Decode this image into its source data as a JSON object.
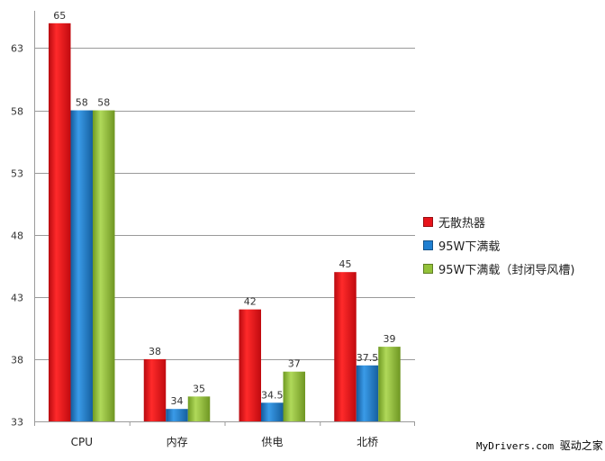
{
  "chart_data": {
    "type": "bar",
    "categories": [
      "CPU",
      "内存",
      "供电",
      "北桥"
    ],
    "ylim": [
      33,
      66
    ],
    "yticks": [
      33,
      38,
      43,
      48,
      53,
      58,
      63
    ],
    "grid": true,
    "legend_position": "right",
    "series": [
      {
        "name": "无散热器",
        "color": "#e8141b",
        "values": [
          65,
          38,
          42,
          45
        ],
        "labels": [
          "65",
          "38",
          "42",
          "45"
        ]
      },
      {
        "name": "95W下满载",
        "color": "#1f7fd1",
        "values": [
          58,
          34,
          34.5,
          37.5
        ],
        "labels": [
          "58",
          "34",
          "34.5",
          "37.5"
        ]
      },
      {
        "name": "95W下满载（封闭导风槽)",
        "color": "#93c23a",
        "values": [
          58,
          35,
          37,
          39
        ],
        "labels": [
          "58",
          "35",
          "37",
          "39"
        ]
      }
    ]
  },
  "watermark": {
    "latin": "MyDrivers.com",
    "cn": "驱动之家"
  }
}
